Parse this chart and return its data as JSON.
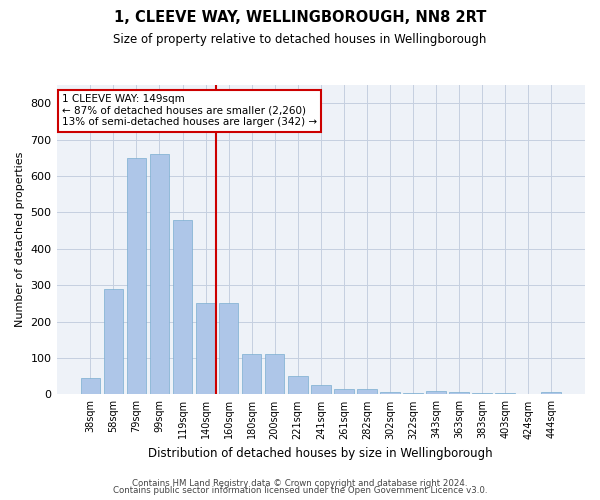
{
  "title1": "1, CLEEVE WAY, WELLINGBOROUGH, NN8 2RT",
  "title2": "Size of property relative to detached houses in Wellingborough",
  "xlabel": "Distribution of detached houses by size in Wellingborough",
  "ylabel": "Number of detached properties",
  "categories": [
    "38sqm",
    "58sqm",
    "79sqm",
    "99sqm",
    "119sqm",
    "140sqm",
    "160sqm",
    "180sqm",
    "200sqm",
    "221sqm",
    "241sqm",
    "261sqm",
    "282sqm",
    "302sqm",
    "322sqm",
    "343sqm",
    "363sqm",
    "383sqm",
    "403sqm",
    "424sqm",
    "444sqm"
  ],
  "values": [
    45,
    290,
    650,
    660,
    480,
    250,
    250,
    110,
    110,
    50,
    25,
    15,
    15,
    8,
    5,
    10,
    8,
    5,
    5,
    0,
    8
  ],
  "bar_color": "#aec6e8",
  "bar_edge_color": "#7aaed0",
  "highlight_color": "#cc0000",
  "vline_x_index": 5,
  "ylim": [
    0,
    850
  ],
  "yticks": [
    0,
    100,
    200,
    300,
    400,
    500,
    600,
    700,
    800
  ],
  "annotation_line1": "1 CLEEVE WAY: 149sqm",
  "annotation_line2": "← 87% of detached houses are smaller (2,260)",
  "annotation_line3": "13% of semi-detached houses are larger (342) →",
  "annotation_box_color": "#ffffff",
  "annotation_box_edge_color": "#cc0000",
  "footer1": "Contains HM Land Registry data © Crown copyright and database right 2024.",
  "footer2": "Contains public sector information licensed under the Open Government Licence v3.0.",
  "background_color": "#eef2f8",
  "grid_color": "#c5cfe0"
}
